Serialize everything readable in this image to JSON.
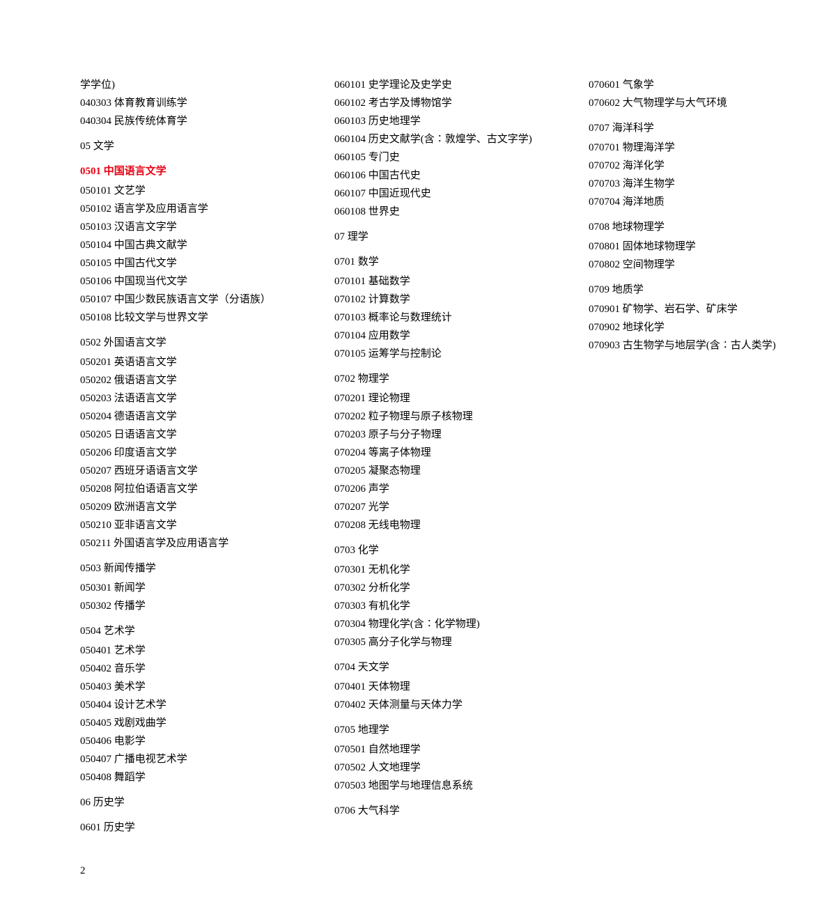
{
  "page_number": "2",
  "left_column": [
    {
      "text": "学学位)",
      "class": ""
    },
    {
      "text": "040303 体育教育训练学",
      "class": ""
    },
    {
      "text": "040304 民族传统体育学",
      "class": ""
    },
    {
      "text": "05 文学",
      "class": "section-heading"
    },
    {
      "text": "0501 中国语言文学",
      "class": "section-heading highlight"
    },
    {
      "text": "050101 文艺学",
      "class": ""
    },
    {
      "text": "050102 语言学及应用语言学",
      "class": ""
    },
    {
      "text": "050103 汉语言文字学",
      "class": ""
    },
    {
      "text": "050104 中国古典文献学",
      "class": ""
    },
    {
      "text": "050105 中国古代文学",
      "class": ""
    },
    {
      "text": "050106 中国现当代文学",
      "class": ""
    },
    {
      "text": "050107 中国少数民族语言文学（分语族）",
      "class": ""
    },
    {
      "text": "050108 比较文学与世界文学",
      "class": ""
    },
    {
      "text": "0502 外国语言文学",
      "class": "section-heading"
    },
    {
      "text": "050201 英语语言文学",
      "class": ""
    },
    {
      "text": "050202 俄语语言文学",
      "class": ""
    },
    {
      "text": "050203 法语语言文学",
      "class": ""
    },
    {
      "text": "050204 德语语言文学",
      "class": ""
    },
    {
      "text": "050205 日语语言文学",
      "class": ""
    },
    {
      "text": "050206 印度语言文学",
      "class": ""
    },
    {
      "text": "050207 西班牙语语言文学",
      "class": ""
    },
    {
      "text": "050208 阿拉伯语语言文学",
      "class": ""
    },
    {
      "text": "050209 欧洲语言文学",
      "class": ""
    },
    {
      "text": "050210 亚非语言文学",
      "class": ""
    },
    {
      "text": "050211 外国语言学及应用语言学",
      "class": ""
    },
    {
      "text": "0503 新闻传播学",
      "class": "section-heading"
    },
    {
      "text": "050301 新闻学",
      "class": ""
    },
    {
      "text": "050302 传播学",
      "class": ""
    },
    {
      "text": "0504 艺术学",
      "class": "section-heading"
    },
    {
      "text": "050401 艺术学",
      "class": ""
    },
    {
      "text": "050402 音乐学",
      "class": ""
    },
    {
      "text": "050403 美术学",
      "class": ""
    },
    {
      "text": "050404 设计艺术学",
      "class": ""
    },
    {
      "text": "050405 戏剧戏曲学",
      "class": ""
    },
    {
      "text": "050406 电影学",
      "class": ""
    },
    {
      "text": "050407 广播电视艺术学",
      "class": ""
    },
    {
      "text": "050408 舞蹈学",
      "class": ""
    },
    {
      "text": "06 历史学",
      "class": "section-heading"
    },
    {
      "text": "0601 历史学",
      "class": "section-heading"
    },
    {
      "text": "060101 史学理论及史学史",
      "class": ""
    },
    {
      "text": "060102 考古学及博物馆学",
      "class": ""
    },
    {
      "text": "060103 历史地理学",
      "class": ""
    },
    {
      "text": "060104 历史文献学(含∶敦煌学、古文字学)",
      "class": ""
    },
    {
      "text": "060105 专门史",
      "class": ""
    },
    {
      "text": "060106 中国古代史",
      "class": ""
    },
    {
      "text": "060107 中国近现代史",
      "class": ""
    },
    {
      "text": "060108 世界史",
      "class": ""
    }
  ],
  "right_column": [
    {
      "text": "07 理学",
      "class": "section-heading"
    },
    {
      "text": "0701 数学",
      "class": "section-heading"
    },
    {
      "text": "070101 基础数学",
      "class": ""
    },
    {
      "text": "070102 计算数学",
      "class": ""
    },
    {
      "text": "070103 概率论与数理统计",
      "class": ""
    },
    {
      "text": "070104 应用数学",
      "class": ""
    },
    {
      "text": "070105 运筹学与控制论",
      "class": ""
    },
    {
      "text": "0702 物理学",
      "class": "section-heading"
    },
    {
      "text": "070201 理论物理",
      "class": ""
    },
    {
      "text": "070202 粒子物理与原子核物理",
      "class": ""
    },
    {
      "text": "070203 原子与分子物理",
      "class": ""
    },
    {
      "text": "070204 等离子体物理",
      "class": ""
    },
    {
      "text": "070205 凝聚态物理",
      "class": ""
    },
    {
      "text": "070206 声学",
      "class": ""
    },
    {
      "text": "070207 光学",
      "class": ""
    },
    {
      "text": "070208 无线电物理",
      "class": ""
    },
    {
      "text": "0703 化学",
      "class": "section-heading"
    },
    {
      "text": "070301 无机化学",
      "class": ""
    },
    {
      "text": "070302 分析化学",
      "class": ""
    },
    {
      "text": "070303 有机化学",
      "class": ""
    },
    {
      "text": "070304 物理化学(含∶化学物理)",
      "class": ""
    },
    {
      "text": "070305 高分子化学与物理",
      "class": ""
    },
    {
      "text": "0704 天文学",
      "class": "section-heading"
    },
    {
      "text": "070401 天体物理",
      "class": ""
    },
    {
      "text": "070402 天体测量与天体力学",
      "class": ""
    },
    {
      "text": "0705 地理学",
      "class": "section-heading"
    },
    {
      "text": "070501 自然地理学",
      "class": ""
    },
    {
      "text": "070502 人文地理学",
      "class": ""
    },
    {
      "text": "070503 地图学与地理信息系统",
      "class": ""
    },
    {
      "text": "0706 大气科学",
      "class": "section-heading"
    },
    {
      "text": "070601 气象学",
      "class": ""
    },
    {
      "text": "070602 大气物理学与大气环境",
      "class": ""
    },
    {
      "text": "0707 海洋科学",
      "class": "section-heading"
    },
    {
      "text": "070701 物理海洋学",
      "class": ""
    },
    {
      "text": "070702 海洋化学",
      "class": ""
    },
    {
      "text": "070703 海洋生物学",
      "class": ""
    },
    {
      "text": "070704 海洋地质",
      "class": ""
    },
    {
      "text": "0708 地球物理学",
      "class": "section-heading"
    },
    {
      "text": "070801 固体地球物理学",
      "class": ""
    },
    {
      "text": "070802 空间物理学",
      "class": ""
    },
    {
      "text": "0709 地质学",
      "class": "section-heading"
    },
    {
      "text": "070901 矿物学、岩石学、矿床学",
      "class": ""
    },
    {
      "text": "070902 地球化学",
      "class": ""
    },
    {
      "text": "070903 古生物学与地层学(含∶古人类学)",
      "class": ""
    }
  ]
}
